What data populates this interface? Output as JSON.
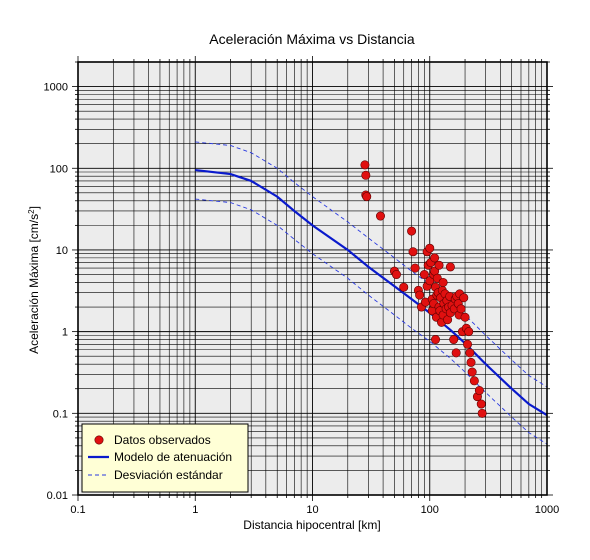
{
  "chart_data": {
    "type": "scatter",
    "title": "Aceleración Máxima vs Distancia",
    "xlabel": "Distancia hipocentral [km]",
    "ylabel_main": "Aceleración Máxima [cm/s",
    "ylabel_sup": "2",
    "ylabel_end": "]",
    "x_scale": "log",
    "y_scale": "log",
    "xlim": [
      0.1,
      1000
    ],
    "ylim": [
      0.01,
      2000
    ],
    "x_ticks": [
      {
        "value": 0.1,
        "label": "0.1"
      },
      {
        "value": 1,
        "label": "1"
      },
      {
        "value": 10,
        "label": "10"
      },
      {
        "value": 100,
        "label": "100"
      },
      {
        "value": 1000,
        "label": "1000"
      }
    ],
    "y_ticks": [
      {
        "value": 0.01,
        "label": "0.01"
      },
      {
        "value": 0.1,
        "label": "0.1"
      },
      {
        "value": 1,
        "label": "1"
      },
      {
        "value": 10,
        "label": "10"
      },
      {
        "value": 100,
        "label": "100"
      },
      {
        "value": 1000,
        "label": "1000"
      }
    ],
    "grid": true,
    "legend_position": "bottom-left",
    "colors": {
      "plot_background": "#ececec",
      "grid": "#000000",
      "observed": "#e01010",
      "model": "#0a1acc",
      "deviation": "#2a3ae0",
      "legend_background": "#ffffd6"
    },
    "series": [
      {
        "name": "Datos observados",
        "kind": "scatter",
        "points": [
          [
            28,
            110
          ],
          [
            28.5,
            82
          ],
          [
            28.5,
            47
          ],
          [
            29,
            45
          ],
          [
            38,
            26
          ],
          [
            50,
            5.5
          ],
          [
            52,
            5.0
          ],
          [
            60,
            3.5
          ],
          [
            70,
            17
          ],
          [
            72,
            9.5
          ],
          [
            75,
            6
          ],
          [
            80,
            3.2
          ],
          [
            82,
            2.8
          ],
          [
            85,
            2.0
          ],
          [
            90,
            5.0
          ],
          [
            92,
            2.3
          ],
          [
            95,
            3.6
          ],
          [
            95,
            9.5
          ],
          [
            97,
            6.5
          ],
          [
            100,
            10.5
          ],
          [
            100,
            4.2
          ],
          [
            102,
            7.0
          ],
          [
            105,
            2.5
          ],
          [
            105,
            1.8
          ],
          [
            108,
            2.2
          ],
          [
            108,
            5.0
          ],
          [
            110,
            5.5
          ],
          [
            110,
            8.0
          ],
          [
            112,
            0.8
          ],
          [
            112,
            3.5
          ],
          [
            114,
            1.5
          ],
          [
            115,
            2.8
          ],
          [
            116,
            4.5
          ],
          [
            118,
            3.0
          ],
          [
            120,
            2.0
          ],
          [
            120,
            6.5
          ],
          [
            122,
            1.8
          ],
          [
            124,
            2.6
          ],
          [
            126,
            1.3
          ],
          [
            128,
            3.2
          ],
          [
            130,
            4.0
          ],
          [
            130,
            1.6
          ],
          [
            132,
            2.2
          ],
          [
            135,
            2.9
          ],
          [
            138,
            1.9
          ],
          [
            140,
            2.4
          ],
          [
            142,
            1.4
          ],
          [
            145,
            2.0
          ],
          [
            148,
            2.7
          ],
          [
            150,
            6.2
          ],
          [
            150,
            1.7
          ],
          [
            155,
            2.1
          ],
          [
            160,
            0.8
          ],
          [
            162,
            1.9
          ],
          [
            165,
            2.5
          ],
          [
            168,
            0.55
          ],
          [
            170,
            2.7
          ],
          [
            175,
            2.2
          ],
          [
            178,
            1.6
          ],
          [
            180,
            2.9
          ],
          [
            185,
            1.9
          ],
          [
            190,
            1.0
          ],
          [
            195,
            2.6
          ],
          [
            200,
            1.5
          ],
          [
            205,
            1.1
          ],
          [
            210,
            0.7
          ],
          [
            215,
            1.0
          ],
          [
            220,
            0.55
          ],
          [
            225,
            0.42
          ],
          [
            230,
            0.32
          ],
          [
            240,
            0.25
          ],
          [
            255,
            0.16
          ],
          [
            265,
            0.19
          ],
          [
            275,
            0.13
          ],
          [
            280,
            0.1
          ]
        ]
      },
      {
        "name": "Modelo de atenuación",
        "kind": "line",
        "points": [
          [
            1,
            95
          ],
          [
            2,
            85
          ],
          [
            3,
            70
          ],
          [
            5,
            45
          ],
          [
            7,
            30
          ],
          [
            10,
            20
          ],
          [
            20,
            10
          ],
          [
            30,
            6.2
          ],
          [
            50,
            3.6
          ],
          [
            70,
            2.5
          ],
          [
            100,
            1.7
          ],
          [
            150,
            1.05
          ],
          [
            200,
            0.72
          ],
          [
            300,
            0.4
          ],
          [
            500,
            0.2
          ],
          [
            700,
            0.13
          ],
          [
            1000,
            0.095
          ]
        ]
      },
      {
        "name": "Desviación estándar",
        "kind": "dashed",
        "points": [
          [
            1,
            210
          ],
          [
            2,
            190
          ],
          [
            3,
            155
          ],
          [
            5,
            100
          ],
          [
            7,
            67
          ],
          [
            10,
            45
          ],
          [
            20,
            22
          ],
          [
            30,
            14
          ],
          [
            50,
            8
          ],
          [
            70,
            5.5
          ],
          [
            100,
            3.8
          ],
          [
            150,
            2.35
          ],
          [
            200,
            1.6
          ],
          [
            300,
            0.9
          ],
          [
            500,
            0.45
          ],
          [
            700,
            0.29
          ],
          [
            1000,
            0.21
          ]
        ]
      },
      {
        "name": "Desviación estándar",
        "kind": "dashed",
        "points": [
          [
            1,
            42
          ],
          [
            2,
            38
          ],
          [
            3,
            31
          ],
          [
            5,
            20
          ],
          [
            7,
            13.5
          ],
          [
            10,
            9
          ],
          [
            20,
            4.5
          ],
          [
            30,
            2.8
          ],
          [
            50,
            1.6
          ],
          [
            70,
            1.1
          ],
          [
            100,
            0.76
          ],
          [
            150,
            0.47
          ],
          [
            200,
            0.32
          ],
          [
            300,
            0.18
          ],
          [
            500,
            0.09
          ],
          [
            700,
            0.058
          ],
          [
            1000,
            0.042
          ]
        ]
      }
    ]
  }
}
